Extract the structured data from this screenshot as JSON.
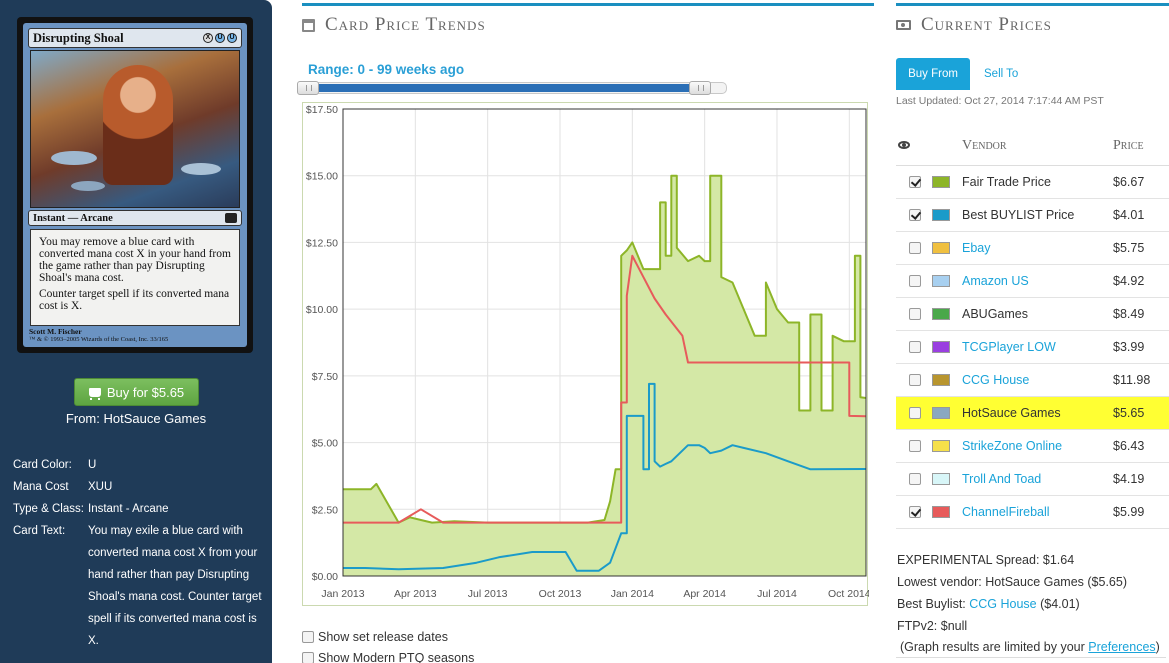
{
  "card": {
    "name": "Disrupting Shoal",
    "mana_symbols": [
      "X",
      "U",
      "U"
    ],
    "type_line": "Instant — Arcane",
    "oracle_text": [
      "You may remove a blue card with converted mana cost X in your hand from the game rather than pay Disrupting Shoal's mana cost.",
      "Counter target spell if its converted mana cost is X."
    ],
    "artist": "Scott M. Fischer",
    "copyright": "™ & © 1993–2005 Wizards of the Coast, Inc. 33/165"
  },
  "buy": {
    "label": "Buy for $5.65",
    "from": "From: HotSauce Games"
  },
  "card_info": [
    {
      "key": "Card Color:",
      "value": "U"
    },
    {
      "key": "Mana Cost",
      "value": "XUU"
    },
    {
      "key": "Type & Class:",
      "value": "Instant - Arcane"
    },
    {
      "key": "Card Text:",
      "value": "You may exile a blue card with converted mana cost X from your hand rather than pay Disrupting Shoal's mana cost. Counter target spell if its converted mana cost is X."
    }
  ],
  "trends": {
    "title": "Card Price Trends",
    "range_label": "Range: 0 - 99 weeks ago",
    "range_start_fraction": 0,
    "range_end_fraction": 0.97,
    "show_release_label": "Show set release dates",
    "show_pto_label": "Show Modern PTQ seasons"
  },
  "chart_data": {
    "type": "area",
    "y_ticks": [
      "$0.00",
      "$2.50",
      "$5.00",
      "$7.50",
      "$10.00",
      "$12.50",
      "$15.00",
      "$17.50"
    ],
    "ylim": [
      0,
      17.5
    ],
    "x_ticks": [
      "Jan 2013",
      "Apr 2013",
      "Jul 2013",
      "Oct 2013",
      "Jan 2014",
      "Apr 2014",
      "Jul 2014",
      "Oct 2014"
    ],
    "x_tick_weeks": [
      0,
      13,
      26,
      39,
      52,
      65,
      78,
      91
    ],
    "xlim": [
      0,
      94
    ],
    "grid": true,
    "series": [
      {
        "name": "Fair Trade Price",
        "color": "#8db528",
        "fill": "#d4e8a6",
        "x": [
          0,
          5,
          6,
          10,
          12,
          14,
          16,
          20,
          26,
          30,
          34,
          38,
          42,
          44,
          47,
          48,
          49,
          50,
          51,
          52,
          54,
          57,
          58,
          59,
          60,
          62,
          64,
          65,
          66,
          68,
          70,
          72,
          74,
          76,
          78,
          80,
          82,
          84,
          86,
          88,
          90,
          92,
          93,
          94
        ],
        "y": [
          3.25,
          3.25,
          3.45,
          2.0,
          2.2,
          2.1,
          2.0,
          2.05,
          2.0,
          2.0,
          2.0,
          2.0,
          2.0,
          2.0,
          2.1,
          2.8,
          4.0,
          12.0,
          12.2,
          12.5,
          11.5,
          14.0,
          12.0,
          15.0,
          12.3,
          11.8,
          12.0,
          11.8,
          15.0,
          11.2,
          11.0,
          10.0,
          9.0,
          11.0,
          10.0,
          9.5,
          6.2,
          9.8,
          6.2,
          9.0,
          8.8,
          12.0,
          6.7,
          6.67
        ]
      },
      {
        "name": "Best BUYLIST Price",
        "color": "#1b9bc9",
        "x": [
          0,
          4,
          10,
          18,
          24,
          28,
          34,
          40,
          42,
          46,
          48,
          50,
          51,
          52,
          54,
          55,
          56,
          57,
          58,
          59,
          62,
          64,
          65,
          66,
          68,
          70,
          72,
          76,
          80,
          84,
          94
        ],
        "y": [
          0.3,
          0.3,
          0.25,
          0.3,
          0.5,
          0.7,
          0.9,
          0.9,
          0.2,
          0.2,
          0.5,
          1.6,
          6.0,
          6.0,
          4.0,
          7.2,
          4.3,
          4.1,
          4.2,
          4.3,
          4.9,
          4.9,
          4.8,
          4.6,
          4.7,
          4.9,
          4.8,
          4.6,
          4.3,
          4.0,
          4.01
        ]
      },
      {
        "name": "ChannelFireball",
        "color": "#e75b5b",
        "x": [
          0,
          10,
          14,
          18,
          26,
          34,
          42,
          46,
          49,
          50,
          51,
          52,
          54,
          56,
          58,
          61,
          62,
          64,
          66,
          70,
          76,
          80,
          84,
          90,
          91,
          94
        ],
        "y": [
          2.0,
          2.0,
          2.5,
          2.0,
          2.0,
          2.0,
          2.0,
          2.0,
          2.0,
          6.5,
          10.5,
          12.0,
          11.2,
          10.4,
          9.8,
          9.0,
          8.0,
          8.0,
          8.0,
          8.0,
          8.0,
          8.0,
          8.0,
          8.0,
          6.0,
          5.99
        ]
      }
    ]
  },
  "prices": {
    "title": "Current Prices",
    "tab_buy": "Buy From",
    "tab_sell": "Sell To",
    "last_updated": "Last Updated: Oct 27, 2014 7:17:44 AM PST",
    "col_vendor": "Vendor",
    "col_price": "Price",
    "vendors": [
      {
        "name": "Fair Trade Price",
        "price": "$6.67",
        "color": "#8db528",
        "checked": true,
        "link": false,
        "highlight": false
      },
      {
        "name": "Best BUYLIST Price",
        "price": "$4.01",
        "color": "#1b9bc9",
        "checked": true,
        "link": false,
        "highlight": false
      },
      {
        "name": "Ebay",
        "price": "$5.75",
        "color": "#f0c040",
        "checked": false,
        "link": true,
        "highlight": false
      },
      {
        "name": "Amazon US",
        "price": "$4.92",
        "color": "#a8d0f0",
        "checked": false,
        "link": true,
        "highlight": false
      },
      {
        "name": "ABUGames",
        "price": "$8.49",
        "color": "#4aa84a",
        "checked": false,
        "link": false,
        "highlight": false
      },
      {
        "name": "TCGPlayer LOW",
        "price": "$3.99",
        "color": "#9a3fe0",
        "checked": false,
        "link": true,
        "highlight": false
      },
      {
        "name": "CCG House",
        "price": "$11.98",
        "color": "#b8952e",
        "checked": false,
        "link": true,
        "highlight": false
      },
      {
        "name": "HotSauce Games",
        "price": "$5.65",
        "color": "#8aa8c0",
        "checked": false,
        "link": false,
        "highlight": true
      },
      {
        "name": "StrikeZone Online",
        "price": "$6.43",
        "color": "#f6e04a",
        "checked": false,
        "link": true,
        "highlight": false
      },
      {
        "name": "Troll And Toad",
        "price": "$4.19",
        "color": "#d8f6f8",
        "checked": false,
        "link": true,
        "highlight": false
      },
      {
        "name": "ChannelFireball",
        "price": "$5.99",
        "color": "#e75b5b",
        "checked": true,
        "link": true,
        "highlight": false
      }
    ],
    "spread": "EXPERIMENTAL Spread: $1.64",
    "lowest_vendor": "Lowest vendor: HotSauce Games ($5.65)",
    "best_buylist_prefix": "Best Buylist: ",
    "best_buylist_vendor": "CCG House",
    "best_buylist_price": " ($4.01)",
    "ftpv2": "FTPv2: $null",
    "pref_note_prefix": "(Graph results are limited by your ",
    "pref_note_link": "Preferences",
    "pref_note_suffix": ")"
  }
}
